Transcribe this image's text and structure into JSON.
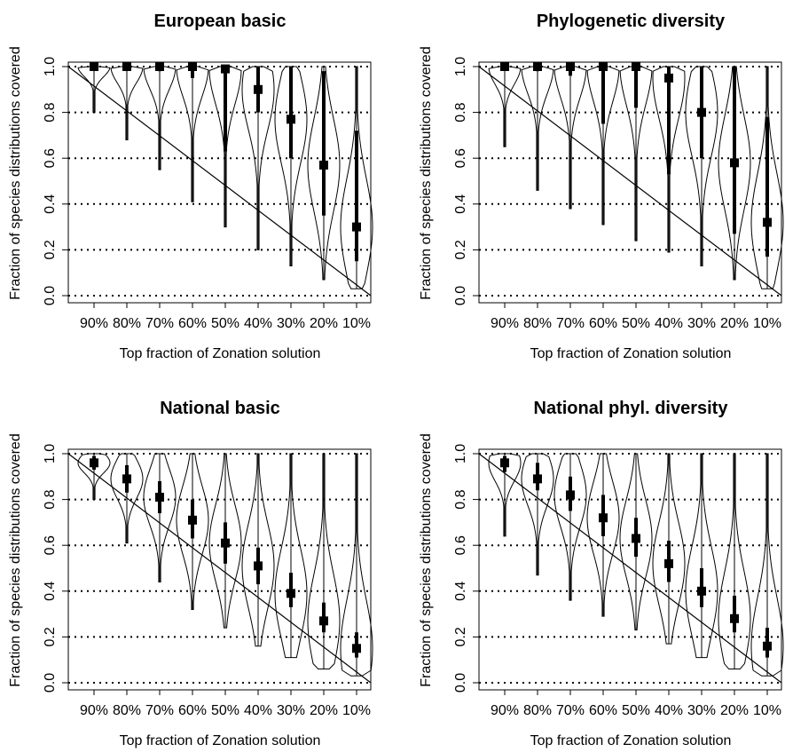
{
  "colors": {
    "ink": "#000000",
    "background": "#ffffff"
  },
  "chart_data": [
    {
      "type": "violin",
      "title": "European basic",
      "xlabel": "Top fraction of Zonation solution",
      "ylabel": "Fraction of species distributions covered",
      "categories": [
        "90%",
        "80%",
        "70%",
        "60%",
        "50%",
        "40%",
        "30%",
        "20%",
        "10%"
      ],
      "y_ticks": [
        "0.0",
        "0.2",
        "0.4",
        "0.6",
        "0.8",
        "1.0"
      ],
      "ylim": [
        0,
        1
      ],
      "grid": "horizontal-dotted",
      "reference_line": {
        "from": [
          100,
          1.0
        ],
        "to": [
          0,
          0.0
        ]
      },
      "medians": [
        1.0,
        1.0,
        1.0,
        1.0,
        0.99,
        0.9,
        0.77,
        0.57,
        0.3
      ],
      "q1": [
        1.0,
        0.99,
        0.98,
        0.95,
        0.63,
        0.8,
        0.6,
        0.35,
        0.15
      ],
      "q3": [
        1.0,
        1.0,
        1.0,
        1.0,
        1.0,
        1.0,
        1.0,
        0.98,
        0.72
      ],
      "mins": [
        0.8,
        0.68,
        0.55,
        0.41,
        0.3,
        0.2,
        0.13,
        0.07,
        0.03
      ],
      "maxs": [
        1.0,
        1.0,
        1.0,
        1.0,
        1.0,
        1.0,
        1.0,
        1.0,
        1.0
      ]
    },
    {
      "type": "violin",
      "title": "Phylogenetic diversity",
      "xlabel": "Top fraction of Zonation solution",
      "ylabel": "Fraction of species distributions covered",
      "categories": [
        "90%",
        "80%",
        "70%",
        "60%",
        "50%",
        "40%",
        "30%",
        "20%",
        "10%"
      ],
      "y_ticks": [
        "0.0",
        "0.2",
        "0.4",
        "0.6",
        "0.8",
        "1.0"
      ],
      "ylim": [
        0,
        1
      ],
      "grid": "horizontal-dotted",
      "reference_line": {
        "from": [
          100,
          1.0
        ],
        "to": [
          0,
          0.0
        ]
      },
      "medians": [
        1.0,
        1.0,
        1.0,
        1.0,
        1.0,
        0.95,
        0.8,
        0.58,
        0.32
      ],
      "q1": [
        1.0,
        0.98,
        0.96,
        0.75,
        0.82,
        0.53,
        0.6,
        0.27,
        0.17
      ],
      "q3": [
        1.0,
        1.0,
        1.0,
        1.0,
        1.0,
        1.0,
        1.0,
        1.0,
        0.78
      ],
      "mins": [
        0.65,
        0.46,
        0.38,
        0.31,
        0.24,
        0.19,
        0.13,
        0.07,
        0.03
      ],
      "maxs": [
        1.0,
        1.0,
        1.0,
        1.0,
        1.0,
        1.0,
        1.0,
        1.0,
        1.0
      ]
    },
    {
      "type": "violin",
      "title": "National basic",
      "xlabel": "Top fraction of Zonation solution",
      "ylabel": "Fraction of species distributions covered",
      "categories": [
        "90%",
        "80%",
        "70%",
        "60%",
        "50%",
        "40%",
        "30%",
        "20%",
        "10%"
      ],
      "y_ticks": [
        "0.0",
        "0.2",
        "0.4",
        "0.6",
        "0.8",
        "1.0"
      ],
      "ylim": [
        0,
        1
      ],
      "grid": "horizontal-dotted",
      "reference_line": {
        "from": [
          100,
          1.0
        ],
        "to": [
          0,
          0.0
        ]
      },
      "medians": [
        0.96,
        0.89,
        0.81,
        0.71,
        0.61,
        0.51,
        0.39,
        0.27,
        0.15
      ],
      "q1": [
        0.93,
        0.83,
        0.74,
        0.63,
        0.52,
        0.43,
        0.33,
        0.22,
        0.11
      ],
      "q3": [
        0.99,
        0.95,
        0.88,
        0.8,
        0.7,
        0.59,
        0.48,
        0.35,
        0.22
      ],
      "mins": [
        0.8,
        0.61,
        0.44,
        0.32,
        0.24,
        0.16,
        0.11,
        0.06,
        0.03
      ],
      "maxs": [
        1.0,
        1.0,
        1.0,
        1.0,
        1.0,
        1.0,
        1.0,
        1.0,
        1.0
      ]
    },
    {
      "type": "violin",
      "title": "National phyl. diversity",
      "xlabel": "Top fraction of Zonation solution",
      "ylabel": "Fraction of species distributions covered",
      "categories": [
        "90%",
        "80%",
        "70%",
        "60%",
        "50%",
        "40%",
        "30%",
        "20%",
        "10%"
      ],
      "y_ticks": [
        "0.0",
        "0.2",
        "0.4",
        "0.6",
        "0.8",
        "1.0"
      ],
      "ylim": [
        0,
        1
      ],
      "grid": "horizontal-dotted",
      "reference_line": {
        "from": [
          100,
          1.0
        ],
        "to": [
          0,
          0.0
        ]
      },
      "medians": [
        0.96,
        0.89,
        0.82,
        0.72,
        0.63,
        0.52,
        0.4,
        0.28,
        0.16
      ],
      "q1": [
        0.92,
        0.84,
        0.75,
        0.64,
        0.55,
        0.44,
        0.33,
        0.22,
        0.11
      ],
      "q3": [
        0.99,
        0.96,
        0.9,
        0.82,
        0.72,
        0.62,
        0.5,
        0.38,
        0.24
      ],
      "mins": [
        0.64,
        0.47,
        0.36,
        0.29,
        0.23,
        0.17,
        0.11,
        0.06,
        0.03
      ],
      "maxs": [
        1.0,
        1.0,
        1.0,
        1.0,
        1.0,
        1.0,
        1.0,
        1.0,
        1.0
      ]
    }
  ]
}
